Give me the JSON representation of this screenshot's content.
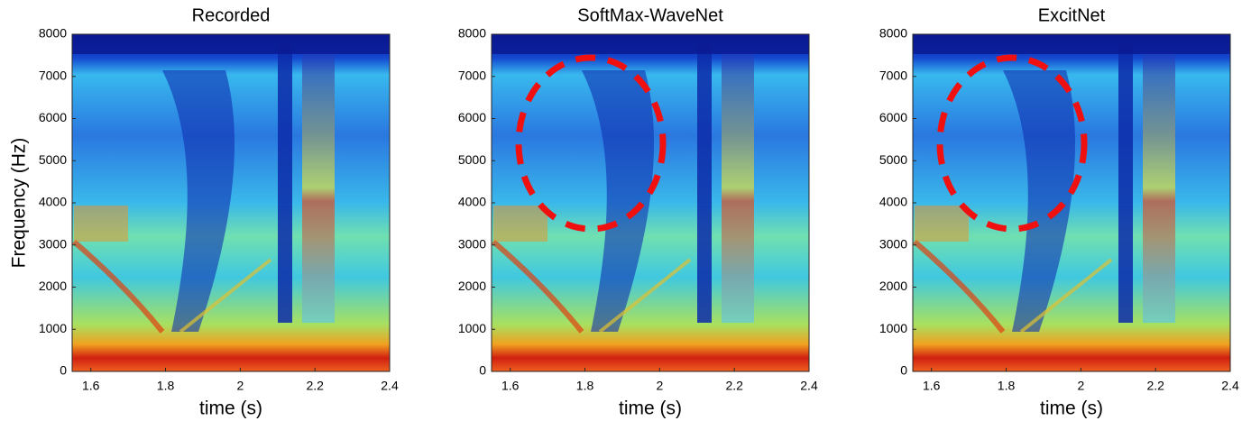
{
  "chart_data": [
    {
      "type": "spectrogram",
      "title": "Recorded",
      "xlabel": "time (s)",
      "ylabel": "Frequency (Hz)",
      "xlim": [
        1.55,
        2.4
      ],
      "ylim": [
        0,
        8000
      ],
      "xticks": [
        1.6,
        1.8,
        2,
        2.2,
        2.4
      ],
      "yticks": [
        0,
        1000,
        2000,
        3000,
        4000,
        5000,
        6000,
        7000,
        8000
      ]
    },
    {
      "type": "spectrogram",
      "title": "SoftMax-WaveNet",
      "xlabel": "time (s)",
      "xlim": [
        1.55,
        2.4
      ],
      "ylim": [
        0,
        8000
      ],
      "xticks": [
        1.6,
        1.8,
        2,
        2.2,
        2.4
      ],
      "yticks": [
        0,
        1000,
        2000,
        3000,
        4000,
        5000,
        6000,
        7000,
        8000
      ]
    },
    {
      "type": "spectrogram",
      "title": "ExcitNet",
      "xlabel": "time (s)",
      "xlim": [
        1.55,
        2.4
      ],
      "ylim": [
        0,
        8000
      ],
      "xticks": [
        1.6,
        1.8,
        2,
        2.2,
        2.4
      ],
      "yticks": [
        0,
        1000,
        2000,
        3000,
        4000,
        5000,
        6000,
        7000,
        8000
      ]
    }
  ]
}
